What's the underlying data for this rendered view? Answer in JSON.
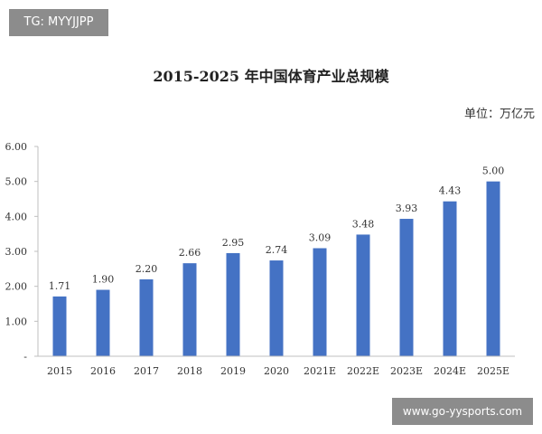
{
  "watermarks": {
    "top": "TG: MYYJJPP",
    "bottom": "www.go-yysports.com"
  },
  "chart_data": {
    "type": "bar",
    "title": "2015-2025 年中国体育产业总规模",
    "unit": "单位：万亿元",
    "categories": [
      "2015",
      "2016",
      "2017",
      "2018",
      "2019",
      "2020",
      "2021E",
      "2022E",
      "2023E",
      "2024E",
      "2025E"
    ],
    "values": [
      1.71,
      1.9,
      2.2,
      2.66,
      2.95,
      2.74,
      3.09,
      3.48,
      3.93,
      4.43,
      5.0
    ],
    "data_labels": [
      "1.71",
      "1.90",
      "2.20",
      "2.66",
      "2.95",
      "2.74",
      "3.09",
      "3.48",
      "3.93",
      "4.43",
      "5.00"
    ],
    "y_ticks": [
      0,
      1,
      2,
      3,
      4,
      5,
      6
    ],
    "y_tick_labels": [
      "-",
      "1.00",
      "2.00",
      "3.00",
      "4.00",
      "5.00",
      "6.00"
    ],
    "ylim": [
      0,
      6
    ],
    "grid": false,
    "legend": "none",
    "colors": {
      "bar": "#4472c4",
      "axis": "#bfbfbf",
      "text": "#333333"
    }
  }
}
